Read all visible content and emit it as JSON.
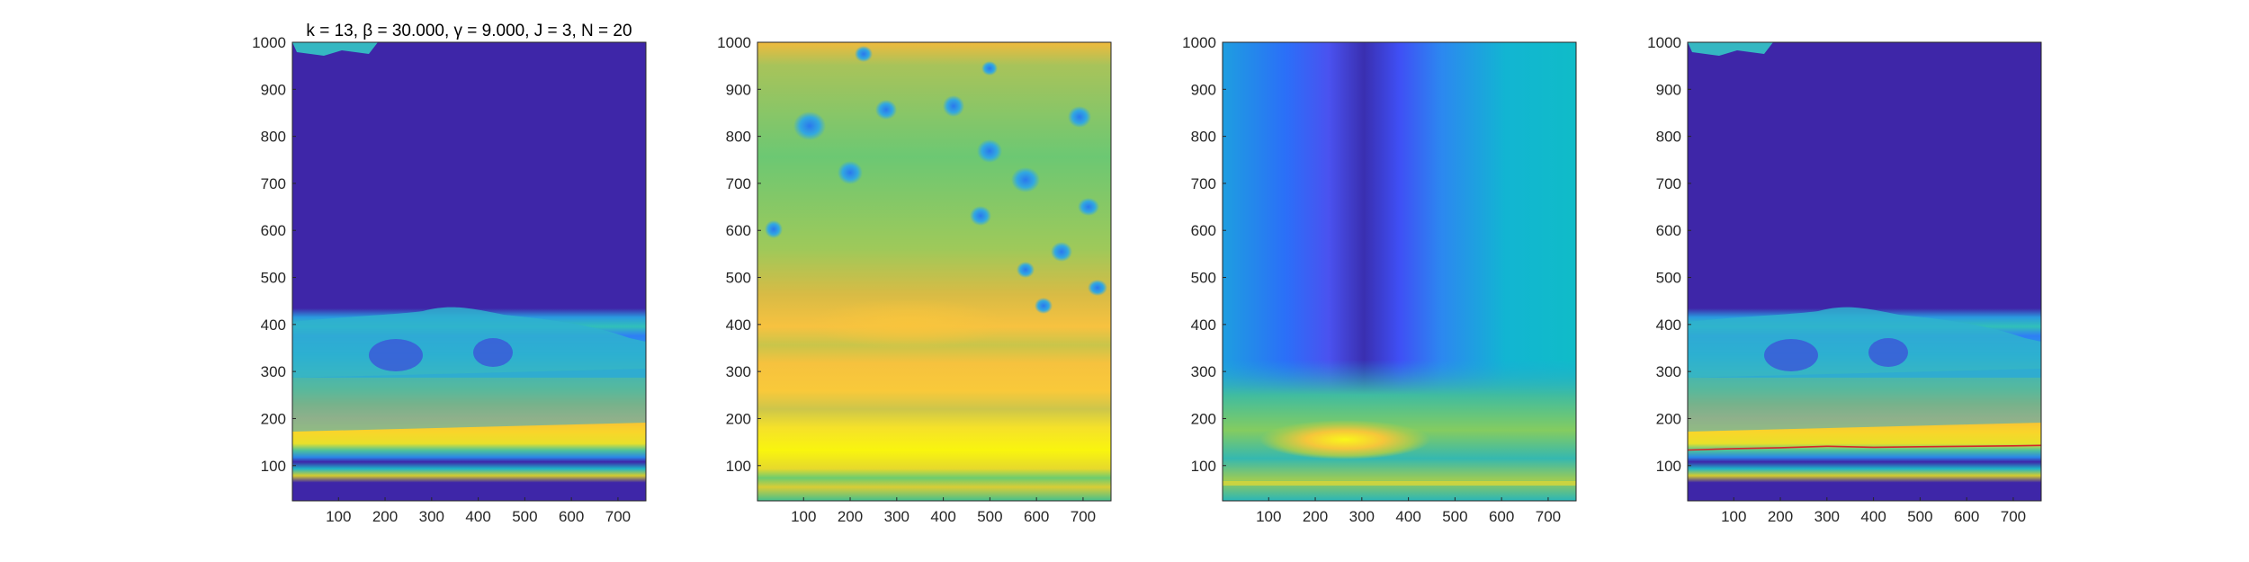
{
  "chart_data": [
    {
      "type": "heatmap",
      "title": "k = 13, β = 30.000, γ = 9.000, J = 3, N = 20",
      "xlim": [
        1,
        760
      ],
      "ylim": [
        25,
        1000
      ],
      "x_ticks": [
        "100",
        "200",
        "300",
        "400",
        "500",
        "600",
        "700"
      ],
      "y_ticks": [
        "100",
        "200",
        "300",
        "400",
        "500",
        "600",
        "700",
        "800",
        "900",
        "1000"
      ],
      "colormap": "parula",
      "description_values": {
        "dominant_band_y": [
          130,
          200
        ],
        "upper_region": "low"
      }
    },
    {
      "type": "heatmap",
      "title": "",
      "xlim": [
        1,
        760
      ],
      "ylim": [
        25,
        1000
      ],
      "x_ticks": [
        "100",
        "200",
        "300",
        "400",
        "500",
        "600",
        "700"
      ],
      "y_ticks": [
        "100",
        "200",
        "300",
        "400",
        "500",
        "600",
        "700",
        "800",
        "900",
        "1000"
      ],
      "colormap": "parula"
    },
    {
      "type": "heatmap",
      "title": "",
      "xlim": [
        1,
        760
      ],
      "ylim": [
        25,
        1000
      ],
      "x_ticks": [
        "100",
        "200",
        "300",
        "400",
        "500",
        "600",
        "700"
      ],
      "y_ticks": [
        "100",
        "200",
        "300",
        "400",
        "500",
        "600",
        "700",
        "800",
        "900",
        "1000"
      ],
      "colormap": "parula"
    },
    {
      "type": "heatmap",
      "title": "",
      "xlim": [
        1,
        760
      ],
      "ylim": [
        25,
        1000
      ],
      "x_ticks": [
        "100",
        "200",
        "300",
        "400",
        "500",
        "600",
        "700"
      ],
      "y_ticks": [
        "100",
        "200",
        "300",
        "400",
        "500",
        "600",
        "700",
        "800",
        "900",
        "1000"
      ],
      "colormap": "parula",
      "ridge_line": {
        "color": "#d62728",
        "x": [
          1,
          100,
          200,
          300,
          400,
          500,
          600,
          700,
          760
        ],
        "y": [
          133,
          136,
          138,
          141,
          139,
          140,
          141,
          142,
          143
        ]
      }
    }
  ],
  "colors": {
    "low": "#3e26a8",
    "mid": "#1fb5c8",
    "high": "#f9fb0e",
    "ridge": "#d62728"
  }
}
